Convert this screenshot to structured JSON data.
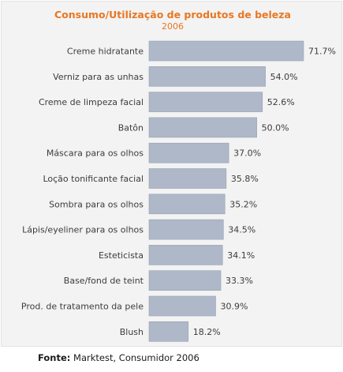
{
  "chart_data": {
    "type": "bar",
    "orientation": "horizontal",
    "title": "Consumo/Utilização de produtos de beleza",
    "subtitle": "2006",
    "categories": [
      "Creme hidratante",
      "Verniz para as unhas",
      "Creme de limpeza facial",
      "Batôn",
      "Máscara para os olhos",
      "Loção tonificante facial",
      "Sombra para os olhos",
      "Lápis/eyeliner para os olhos",
      "Esteticista",
      "Base/fond de teint",
      "Prod. de tratamento da pele",
      "Blush"
    ],
    "values": [
      71.7,
      54.0,
      52.6,
      50.0,
      37.0,
      35.8,
      35.2,
      34.5,
      34.1,
      33.3,
      30.9,
      18.2
    ],
    "value_labels": [
      "71.7%",
      "54.0%",
      "52.6%",
      "50.0%",
      "37.0%",
      "35.8%",
      "35.2%",
      "34.5%",
      "34.1%",
      "33.3%",
      "30.9%",
      "18.2%"
    ],
    "unit": "%",
    "grid": false,
    "legend": "none",
    "colors": {
      "bar": "#aeb8c8",
      "bar_edge": "#96a2b4",
      "title": "#e87722",
      "background": "#f3f3f3"
    }
  },
  "source": {
    "label": "Fonte:",
    "text": " Marktest, Consumidor 2006"
  }
}
